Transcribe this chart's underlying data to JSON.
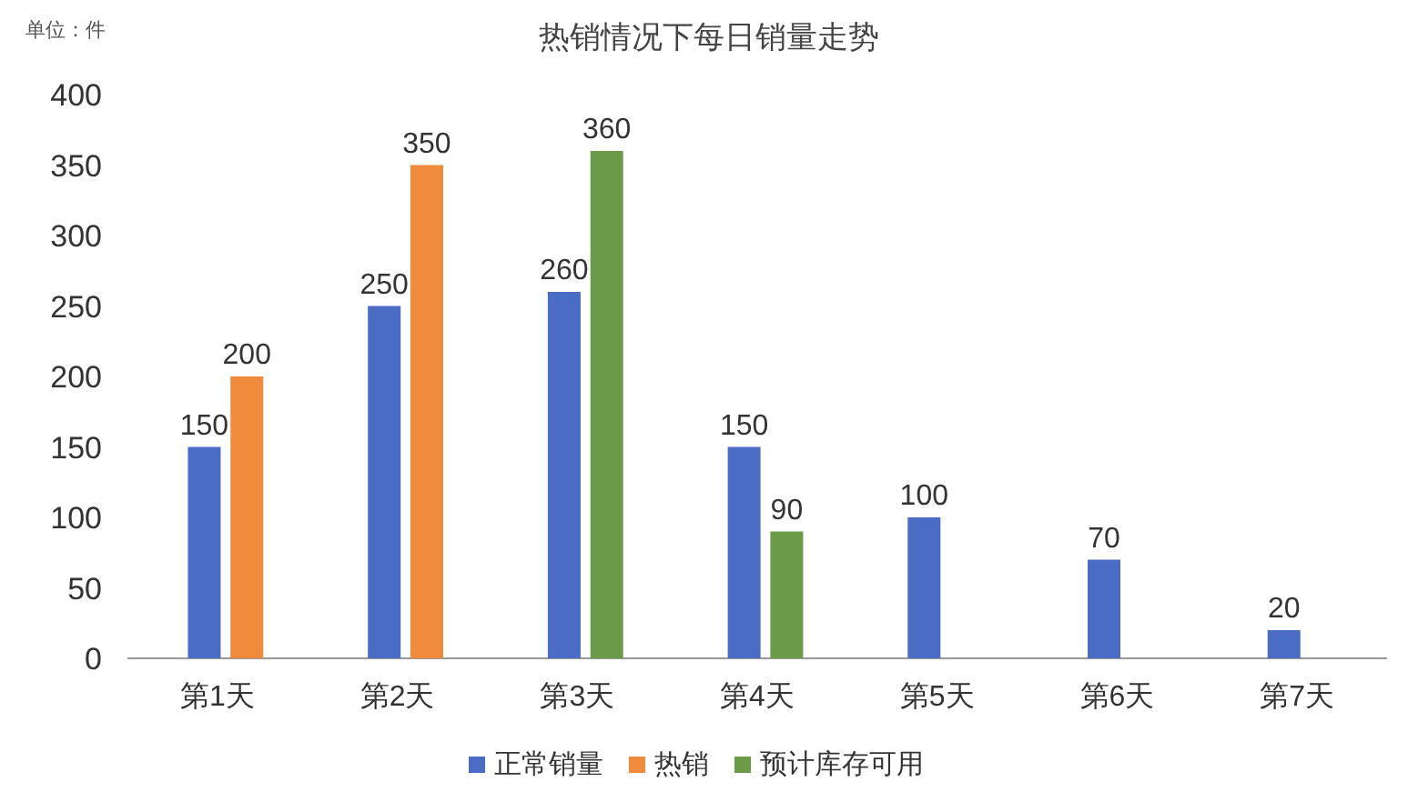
{
  "chart_data": {
    "type": "bar",
    "title": "热销情况下每日销量走势",
    "annotations": [
      "单位：件"
    ],
    "categories": [
      "第1天",
      "第2天",
      "第3天",
      "第4天",
      "第5天",
      "第6天",
      "第7天"
    ],
    "series": [
      {
        "name": "正常销量",
        "color": "#4a6cc4",
        "values": [
          150,
          250,
          260,
          150,
          100,
          70,
          20
        ]
      },
      {
        "name": "热销",
        "color": "#f08a3c",
        "values": [
          200,
          350,
          null,
          null,
          null,
          null,
          null
        ]
      },
      {
        "name": "预计库存可用",
        "color": "#6b9a48",
        "values": [
          null,
          null,
          360,
          90,
          null,
          null,
          null
        ]
      }
    ],
    "ylim": [
      0,
      400
    ],
    "yticks": [
      0,
      50,
      100,
      150,
      200,
      250,
      300,
      350,
      400
    ],
    "grid": false,
    "legend": "bottom",
    "data_labels": true
  }
}
